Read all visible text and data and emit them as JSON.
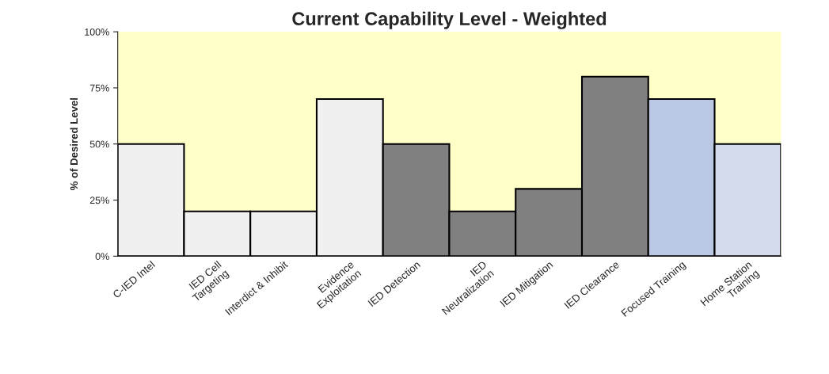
{
  "chart_data": {
    "type": "bar",
    "title": "Current Capability Level - Weighted",
    "ylabel": "% of Desired Level",
    "categories": [
      "C-IED Intel",
      "IED Cell\nTargeting",
      "Interdict & Inhibit",
      "Evidence\nExploitation",
      "IED Detection",
      "IED\nNeutralization",
      "IED Mitigation",
      "IED Clearance",
      "Focused Training",
      "Home Station\nTraining"
    ],
    "values": [
      50,
      20,
      20,
      70,
      50,
      20,
      30,
      80,
      70,
      50
    ],
    "colors": [
      "#f0f0f0",
      "#f0f0f0",
      "#f0f0f0",
      "#f0f0f0",
      "#808080",
      "#808080",
      "#808080",
      "#808080",
      "#b4c6ea",
      "#cfdaf0"
    ],
    "ylim": [
      0,
      100
    ],
    "yticks": [
      {
        "value": 0,
        "label": "0%"
      },
      {
        "value": 25,
        "label": "25%"
      },
      {
        "value": 50,
        "label": "50%"
      },
      {
        "value": 75,
        "label": "75%"
      },
      {
        "value": 100,
        "label": "100%"
      }
    ],
    "grid": false,
    "legend": false
  }
}
